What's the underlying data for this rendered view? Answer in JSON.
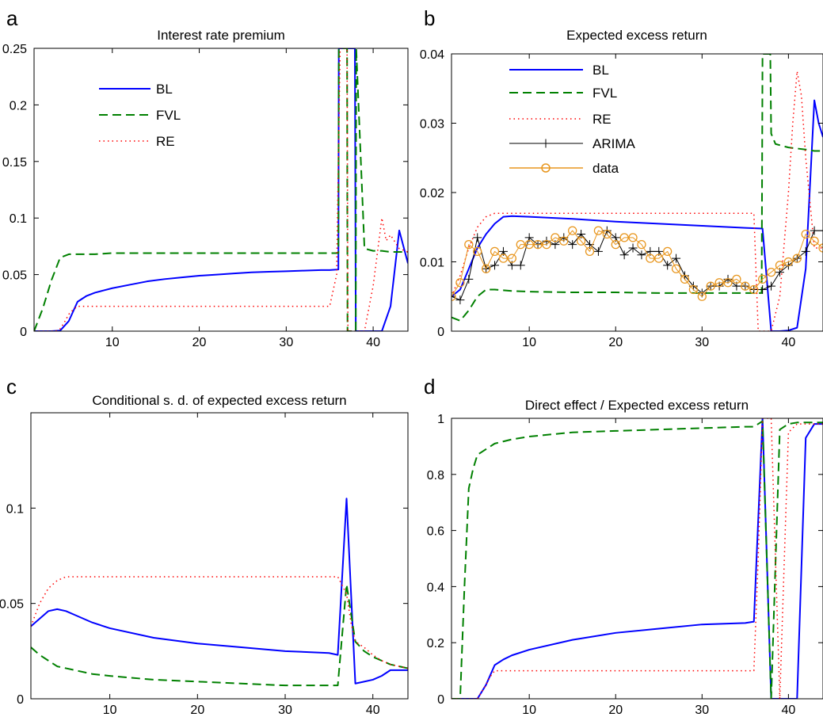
{
  "chart_data": [
    {
      "letter": "a",
      "type": "line",
      "title": "Interest rate premium",
      "xlim": [
        1,
        44
      ],
      "ylim": [
        0,
        0.25
      ],
      "xticks": [
        10,
        20,
        30,
        40
      ],
      "yticks": [
        0,
        0.05,
        0.1,
        0.15,
        0.2,
        0.25
      ],
      "ytick_labels": [
        "0",
        "0.05",
        "0.1",
        "0.15",
        "0.2",
        "0.25"
      ],
      "legend_placement": "upper-left",
      "series": [
        {
          "name": "BL",
          "style": "solid",
          "color": "#0000ff",
          "x": [
            1,
            2,
            3,
            4,
            5,
            6,
            7,
            8,
            9,
            10,
            12,
            14,
            16,
            18,
            20,
            22,
            24,
            26,
            28,
            30,
            32,
            34,
            35,
            36,
            36.05,
            37.9,
            38,
            39,
            40,
            41,
            42,
            43,
            44
          ],
          "y": [
            0,
            0,
            0,
            0.0005,
            0.009,
            0.026,
            0.031,
            0.034,
            0.036,
            0.038,
            0.041,
            0.044,
            0.046,
            0.0475,
            0.049,
            0.05,
            0.051,
            0.052,
            0.0525,
            0.053,
            0.0535,
            0.054,
            0.054,
            0.0545,
            0.25,
            0.25,
            0,
            0,
            0,
            0,
            0.022,
            0.089,
            0.06
          ]
        },
        {
          "name": "FVL",
          "style": "dashed",
          "color": "#008000",
          "x": [
            1,
            2,
            3,
            4,
            5,
            6,
            8,
            10,
            15,
            20,
            25,
            30,
            33,
            36,
            36.05,
            37,
            37.05,
            38,
            38.05,
            39,
            40,
            41,
            42,
            43,
            44
          ],
          "y": [
            0,
            0.02,
            0.045,
            0.065,
            0.068,
            0.068,
            0.068,
            0.069,
            0.069,
            0.069,
            0.069,
            0.069,
            0.069,
            0.069,
            0.25,
            0.25,
            0,
            0,
            0.25,
            0.073,
            0.071,
            0.071,
            0.07,
            0.07,
            0.07
          ]
        },
        {
          "name": "RE",
          "style": "dotted",
          "color": "#ff0000",
          "x": [
            1,
            3,
            3.5,
            4,
            4.5,
            5,
            5.5,
            6,
            7,
            10,
            15,
            20,
            25,
            30,
            35,
            35.8,
            36.2,
            37,
            37.1,
            38,
            38.1,
            39,
            40,
            41,
            41.5,
            42,
            43,
            44
          ],
          "y": [
            0,
            0,
            0,
            0.002,
            0.008,
            0.015,
            0.019,
            0.022,
            0.022,
            0.022,
            0.022,
            0.022,
            0.022,
            0.022,
            0.022,
            0.05,
            0.25,
            0.25,
            0,
            0,
            0,
            0,
            0.04,
            0.1,
            0.08,
            0.085,
            0.073,
            0.07
          ]
        }
      ]
    },
    {
      "letter": "b",
      "type": "line",
      "title": "Expected excess return",
      "xlim": [
        1,
        44
      ],
      "ylim": [
        0,
        0.04
      ],
      "xticks": [
        10,
        20,
        30,
        40
      ],
      "yticks": [
        0,
        0.01,
        0.02,
        0.03,
        0.04
      ],
      "ytick_labels": [
        "0",
        "0.01",
        "0.02",
        "0.03",
        "0.04"
      ],
      "legend_placement": "upper-left",
      "series": [
        {
          "name": "BL",
          "style": "solid",
          "color": "#0000ff",
          "marker": "none",
          "x": [
            1,
            2,
            3,
            4,
            5,
            6,
            7,
            8,
            10,
            15,
            20,
            25,
            30,
            35,
            37,
            38,
            39,
            40,
            41,
            42,
            43,
            43.5,
            44
          ],
          "y": [
            0.005,
            0.006,
            0.009,
            0.012,
            0.014,
            0.0155,
            0.0165,
            0.0166,
            0.0165,
            0.0162,
            0.0158,
            0.0155,
            0.0152,
            0.0149,
            0.0148,
            0,
            0,
            0.0001,
            0.0005,
            0.009,
            0.0333,
            0.03,
            0.028
          ]
        },
        {
          "name": "FVL",
          "style": "dashed",
          "color": "#008000",
          "marker": "none",
          "x": [
            1,
            2,
            3,
            4,
            5,
            6,
            8,
            10,
            15,
            20,
            25,
            30,
            35,
            36,
            36.9,
            37,
            37.9,
            38,
            38.5,
            40,
            42,
            43,
            44
          ],
          "y": [
            0.002,
            0.0015,
            0.003,
            0.005,
            0.006,
            0.006,
            0.0058,
            0.0057,
            0.0056,
            0.0056,
            0.0055,
            0.0055,
            0.0055,
            0.0055,
            0.0055,
            0.04,
            0.04,
            0.0285,
            0.027,
            0.0265,
            0.0262,
            0.026,
            0.026
          ]
        },
        {
          "name": "RE",
          "style": "dotted",
          "color": "#ff0000",
          "marker": "none",
          "x": [
            1,
            2,
            3,
            4,
            5,
            6,
            7,
            10,
            15,
            20,
            25,
            30,
            35,
            36,
            36.5,
            37,
            38,
            39,
            40,
            40.5,
            41,
            41.5,
            42,
            43,
            44
          ],
          "y": [
            0.005,
            0.008,
            0.012,
            0.015,
            0.0165,
            0.017,
            0.017,
            0.017,
            0.017,
            0.017,
            0.017,
            0.017,
            0.017,
            0.017,
            0.0,
            0,
            0,
            0.005,
            0.02,
            0.03,
            0.0375,
            0.034,
            0.025,
            0.012,
            0.012
          ]
        },
        {
          "name": "ARIMA",
          "style": "solid",
          "color": "#000000",
          "marker": "plus",
          "x": [
            1,
            2,
            3,
            4,
            5,
            6,
            7,
            8,
            9,
            10,
            11,
            12,
            13,
            14,
            15,
            16,
            17,
            18,
            19,
            20,
            21,
            22,
            23,
            24,
            25,
            26,
            27,
            28,
            29,
            30,
            31,
            32,
            33,
            34,
            35,
            36,
            37,
            38,
            39,
            40,
            41,
            42,
            43,
            44
          ],
          "y": [
            0.005,
            0.0045,
            0.0075,
            0.0135,
            0.009,
            0.0095,
            0.0115,
            0.0095,
            0.0095,
            0.0135,
            0.0125,
            0.013,
            0.0125,
            0.0135,
            0.0125,
            0.014,
            0.0125,
            0.0115,
            0.0145,
            0.0135,
            0.011,
            0.012,
            0.011,
            0.0115,
            0.0115,
            0.0095,
            0.0105,
            0.008,
            0.0065,
            0.0055,
            0.0065,
            0.0065,
            0.0075,
            0.0065,
            0.0065,
            0.006,
            0.006,
            0.0065,
            0.0085,
            0.0095,
            0.0105,
            0.0115,
            0.0145,
            0.0145
          ]
        },
        {
          "name": "data",
          "style": "solid",
          "color": "#e8961e",
          "marker": "circle",
          "x": [
            1,
            2,
            3,
            4,
            5,
            6,
            7,
            8,
            9,
            10,
            11,
            12,
            13,
            14,
            15,
            16,
            17,
            18,
            19,
            20,
            21,
            22,
            23,
            24,
            25,
            26,
            27,
            28,
            29,
            30,
            31,
            32,
            33,
            34,
            35,
            36,
            37,
            38,
            39,
            40,
            41,
            42,
            43,
            44
          ],
          "y": [
            0.005,
            0.007,
            0.0125,
            0.0115,
            0.009,
            0.0115,
            0.0105,
            0.0105,
            0.0125,
            0.0125,
            0.0125,
            0.0125,
            0.0135,
            0.013,
            0.0145,
            0.013,
            0.0115,
            0.0145,
            0.014,
            0.0125,
            0.0135,
            0.0135,
            0.0125,
            0.0105,
            0.0105,
            0.0115,
            0.009,
            0.0075,
            0.006,
            0.005,
            0.0065,
            0.007,
            0.007,
            0.0075,
            0.0065,
            0.006,
            0.0075,
            0.0085,
            0.0095,
            0.01,
            0.0105,
            0.014,
            0.013,
            0.012
          ]
        }
      ]
    },
    {
      "letter": "c",
      "type": "line",
      "title": "Conditional s. d. of expected excess return",
      "xlim": [
        1,
        44
      ],
      "ylim": [
        0,
        0.15
      ],
      "xticks": [
        10,
        20,
        30,
        40
      ],
      "yticks": [
        0,
        0.05,
        0.1
      ],
      "ytick_labels": [
        "0",
        "0.05",
        "0.1"
      ],
      "legend_placement": "none",
      "series": [
        {
          "name": "BL",
          "style": "solid",
          "color": "#0000ff",
          "x": [
            1,
            2,
            3,
            4,
            5,
            6,
            8,
            10,
            15,
            20,
            25,
            30,
            35,
            36,
            37,
            38,
            39,
            40,
            41,
            42,
            43,
            44
          ],
          "y": [
            0.038,
            0.042,
            0.046,
            0.047,
            0.046,
            0.044,
            0.04,
            0.037,
            0.032,
            0.029,
            0.027,
            0.025,
            0.024,
            0.023,
            0.105,
            0.008,
            0.009,
            0.01,
            0.012,
            0.015,
            0.015,
            0.015
          ]
        },
        {
          "name": "FVL",
          "style": "dashed",
          "color": "#008000",
          "x": [
            1,
            2,
            3,
            4,
            6,
            8,
            10,
            15,
            20,
            25,
            30,
            35,
            36,
            37,
            38,
            39,
            40,
            41,
            42,
            43,
            44
          ],
          "y": [
            0.027,
            0.023,
            0.02,
            0.017,
            0.015,
            0.013,
            0.012,
            0.01,
            0.009,
            0.008,
            0.007,
            0.007,
            0.007,
            0.06,
            0.03,
            0.025,
            0.022,
            0.02,
            0.018,
            0.017,
            0.016
          ]
        },
        {
          "name": "RE",
          "style": "dotted",
          "color": "#ff0000",
          "x": [
            1,
            2,
            3,
            4,
            5,
            6,
            10,
            15,
            20,
            25,
            30,
            35,
            36,
            37,
            37.5,
            38,
            39,
            40,
            41,
            42,
            43,
            44
          ],
          "y": [
            0.038,
            0.05,
            0.058,
            0.062,
            0.064,
            0.064,
            0.064,
            0.064,
            0.064,
            0.064,
            0.064,
            0.064,
            0.064,
            0.055,
            0.04,
            0.03,
            0.027,
            0.023,
            0.02,
            0.018,
            0.017,
            0.016
          ]
        }
      ]
    },
    {
      "letter": "d",
      "type": "line",
      "title": "Direct effect / Expected excess return",
      "xlim": [
        1,
        44
      ],
      "ylim": [
        0,
        1
      ],
      "xticks": [
        10,
        20,
        30,
        40
      ],
      "yticks": [
        0,
        0.2,
        0.4,
        0.6,
        0.8,
        1
      ],
      "ytick_labels": [
        "0",
        "0.2",
        "0.4",
        "0.6",
        "0.8",
        "1"
      ],
      "legend_placement": "none",
      "series": [
        {
          "name": "BL",
          "style": "solid",
          "color": "#0000ff",
          "x": [
            1,
            2,
            3,
            4,
            5,
            6,
            7,
            8,
            10,
            15,
            20,
            25,
            30,
            35,
            36,
            37,
            38,
            39,
            40,
            41,
            42,
            43,
            44
          ],
          "y": [
            0,
            0,
            0,
            0,
            0.05,
            0.12,
            0.14,
            0.155,
            0.175,
            0.21,
            0.235,
            0.25,
            0.265,
            0.27,
            0.275,
            1,
            0,
            0,
            0,
            0,
            0.93,
            0.98,
            0.98
          ]
        },
        {
          "name": "FVL",
          "style": "dashed",
          "color": "#008000",
          "x": [
            1,
            2,
            2.5,
            3,
            3.5,
            4,
            5,
            6,
            8,
            10,
            15,
            20,
            25,
            30,
            35,
            36,
            37,
            38,
            39,
            40,
            41,
            42,
            43,
            44
          ],
          "y": [
            0,
            0,
            0.4,
            0.75,
            0.82,
            0.87,
            0.89,
            0.91,
            0.925,
            0.935,
            0.95,
            0.955,
            0.96,
            0.965,
            0.97,
            0.97,
            0.99,
            0.0,
            0.96,
            0.98,
            0.985,
            0.985,
            0.985,
            0.985
          ]
        },
        {
          "name": "RE",
          "style": "dotted",
          "color": "#ff0000",
          "x": [
            1,
            3,
            4,
            5,
            5.5,
            6,
            10,
            15,
            20,
            25,
            30,
            35,
            36,
            36.5,
            37,
            38,
            38.5,
            39,
            40,
            41,
            42,
            43,
            44
          ],
          "y": [
            0,
            0,
            0,
            0.05,
            0.08,
            0.1,
            0.1,
            0.1,
            0.1,
            0.1,
            0.1,
            0.1,
            0.1,
            0.5,
            1,
            1,
            0.5,
            0,
            0.95,
            0.98,
            0.98,
            0.98,
            0.98
          ]
        }
      ]
    }
  ]
}
